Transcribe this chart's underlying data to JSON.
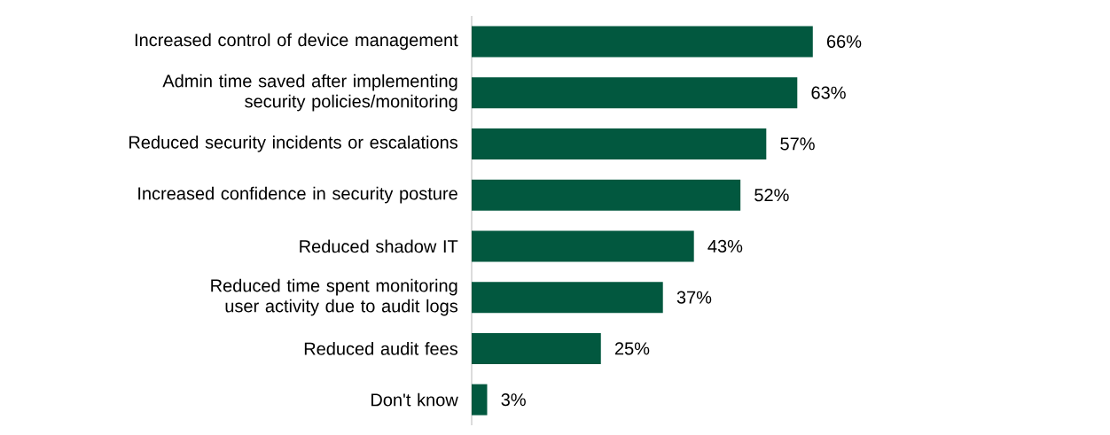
{
  "chart_data": {
    "type": "bar",
    "orientation": "horizontal",
    "categories": [
      "Increased control of device management",
      "Admin time saved after implementing security policies/monitoring",
      "Reduced security incidents or escalations",
      "Increased confidence in security posture",
      "Reduced shadow IT",
      "Reduced time spent monitoring user activity due to audit logs",
      "Reduced audit fees",
      "Don't know"
    ],
    "values": [
      66,
      63,
      57,
      52,
      43,
      37,
      25,
      3
    ],
    "value_labels": [
      "66%",
      "63%",
      "57%",
      "52%",
      "43%",
      "37%",
      "25%",
      "3%"
    ],
    "color": "#02583f"
  }
}
